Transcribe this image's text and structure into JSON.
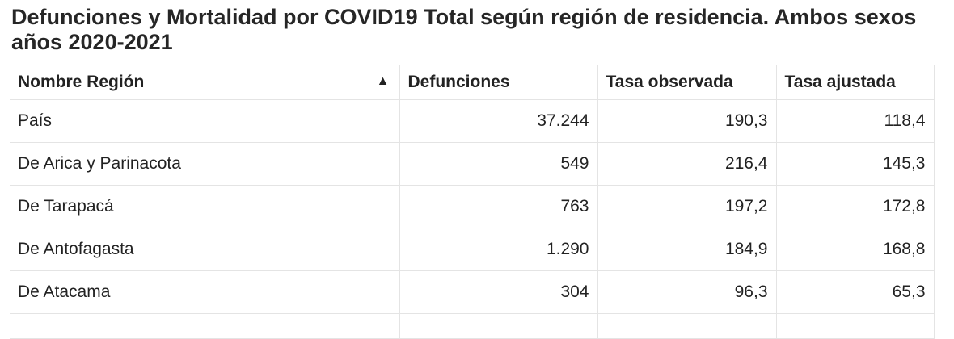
{
  "title": "Defunciones y Mortalidad por COVID19 Total según región de residencia. Ambos sexos años 2020-2021",
  "chart_data": {
    "type": "table",
    "title": "Defunciones y Mortalidad por COVID19 Total según región de residencia. Ambos sexos años 2020-2021",
    "columns": [
      "Nombre Región",
      "Defunciones",
      "Tasa observada",
      "Tasa ajustada"
    ],
    "sort_indicator": "▲",
    "rows": [
      [
        "País",
        "37.244",
        "190,3",
        "118,4"
      ],
      [
        "De Arica y Parinacota",
        "549",
        "216,4",
        "145,3"
      ],
      [
        "De Tarapacá",
        "763",
        "197,2",
        "172,8"
      ],
      [
        "De Antofagasta",
        "1.290",
        "184,9",
        "168,8"
      ],
      [
        "De Atacama",
        "304",
        "96,3",
        "65,3"
      ]
    ]
  }
}
